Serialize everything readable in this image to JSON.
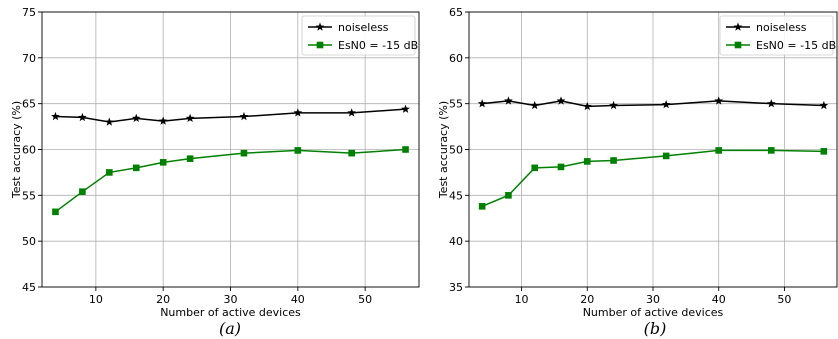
{
  "chart_data": [
    {
      "type": "line",
      "caption": "(a)",
      "xlabel": "Number of active devices",
      "ylabel": "Test accuracy (%)",
      "xlim": [
        2,
        58
      ],
      "ylim": [
        45,
        75
      ],
      "xticks": [
        10,
        20,
        30,
        40,
        50
      ],
      "yticks": [
        45,
        50,
        55,
        60,
        65,
        70,
        75
      ],
      "grid": true,
      "legend": "top-right",
      "x": [
        4,
        8,
        12,
        16,
        20,
        24,
        32,
        40,
        48,
        56
      ],
      "series": [
        {
          "name": "noiseless",
          "color": "#000000",
          "marker": "star",
          "values": [
            63.6,
            63.5,
            63.0,
            63.4,
            63.1,
            63.4,
            63.6,
            64.0,
            64.0,
            64.4
          ]
        },
        {
          "name": "EsN0 = -15 dB",
          "color": "#008000",
          "marker": "square",
          "values": [
            53.2,
            55.4,
            57.5,
            58.0,
            58.6,
            59.0,
            59.6,
            59.9,
            59.6,
            60.0
          ]
        }
      ]
    },
    {
      "type": "line",
      "caption": "(b)",
      "xlabel": "Number of active devices",
      "ylabel": "Test accuracy (%)",
      "xlim": [
        2,
        58
      ],
      "ylim": [
        35,
        65
      ],
      "xticks": [
        10,
        20,
        30,
        40,
        50
      ],
      "yticks": [
        35,
        40,
        45,
        50,
        55,
        60,
        65
      ],
      "grid": true,
      "legend": "top-right",
      "x": [
        4,
        8,
        12,
        16,
        20,
        24,
        32,
        40,
        48,
        56
      ],
      "series": [
        {
          "name": "noiseless",
          "color": "#000000",
          "marker": "star",
          "values": [
            55.0,
            55.3,
            54.8,
            55.3,
            54.7,
            54.8,
            54.9,
            55.3,
            55.0,
            54.8
          ]
        },
        {
          "name": "EsN0 = -15 dB",
          "color": "#008000",
          "marker": "square",
          "values": [
            43.8,
            45.0,
            48.0,
            48.1,
            48.7,
            48.8,
            49.3,
            49.9,
            49.9,
            49.8
          ]
        }
      ]
    }
  ]
}
